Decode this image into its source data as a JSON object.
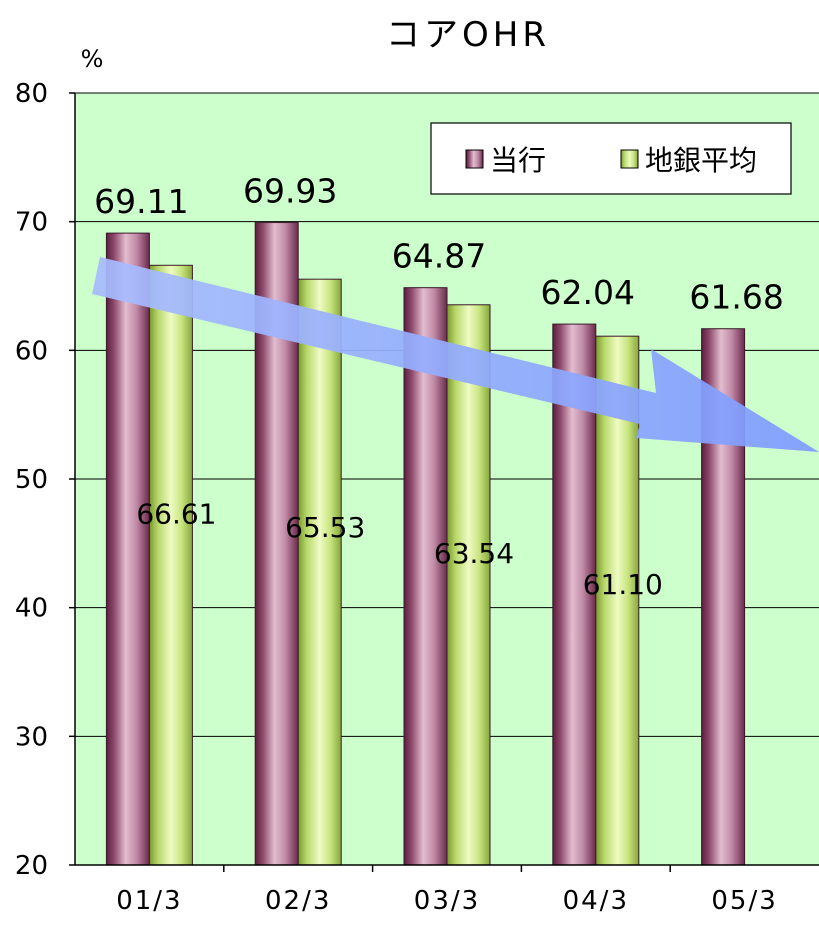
{
  "chart_data": {
    "type": "bar",
    "title": "コアOHR",
    "ylabel": "%",
    "ylim": [
      20,
      80
    ],
    "yticks": [
      20,
      30,
      40,
      50,
      60,
      70,
      80
    ],
    "categories": [
      "01/3",
      "02/3",
      "03/3",
      "04/3",
      "05/3"
    ],
    "series": [
      {
        "name": "当行",
        "values": [
          69.11,
          69.93,
          64.87,
          62.04,
          61.68
        ],
        "labels": [
          "69.11",
          "69.93",
          "64.87",
          "62.04",
          "61.68"
        ],
        "color": "#C99AB4"
      },
      {
        "name": "地銀平均",
        "values": [
          66.61,
          65.53,
          63.54,
          61.1,
          null
        ],
        "labels": [
          "66.61",
          "65.53",
          "63.54",
          "61.10",
          ""
        ],
        "color": "#D3EE99"
      }
    ],
    "legend_position": "top-right",
    "grid": true,
    "background_color": "#CCFFCC",
    "arrow_color": "#8FA8FF"
  }
}
